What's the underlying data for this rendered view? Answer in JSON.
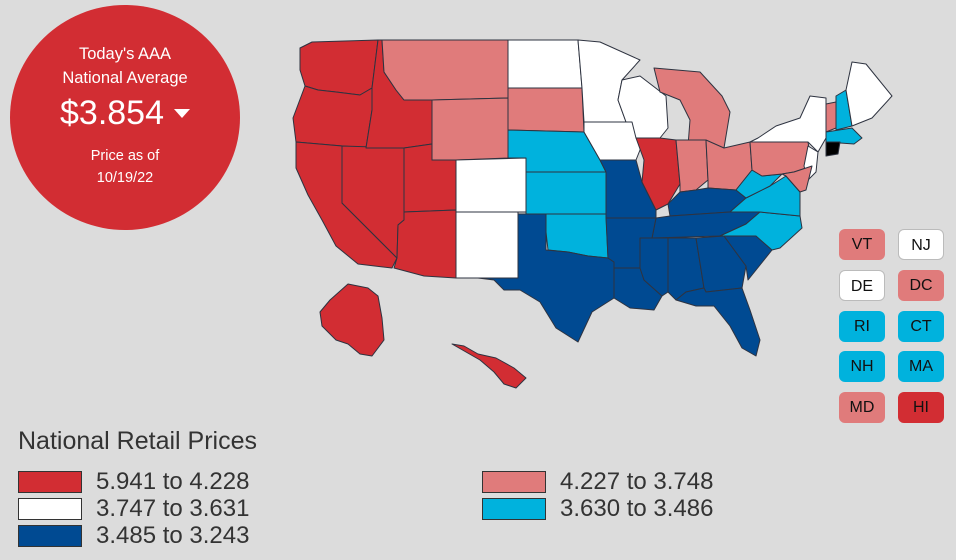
{
  "badge": {
    "line1": "Today's AAA",
    "line2": "National Average",
    "price": "$3.854",
    "trend": "down",
    "asof_label": "Price as of",
    "asof_date": "10/19/22"
  },
  "colors": {
    "tier1": "#d22d33",
    "tier2": "#e07b7b",
    "tier3": "#ffffff",
    "tier4": "#00b2dd",
    "tier5": "#004a92"
  },
  "legend": {
    "title": "National Retail Prices",
    "items": [
      {
        "label": "5.941 to 4.228",
        "tier": "tier1"
      },
      {
        "label": "3.747 to 3.631",
        "tier": "tier3"
      },
      {
        "label": "3.485 to 3.243",
        "tier": "tier5"
      },
      {
        "label": "4.227 to 3.748",
        "tier": "tier2"
      },
      {
        "label": "3.630 to 3.486",
        "tier": "tier4"
      }
    ]
  },
  "small_states": [
    {
      "code": "VT",
      "tier": "tier2"
    },
    {
      "code": "NJ",
      "tier": "tier3"
    },
    {
      "code": "DE",
      "tier": "tier3"
    },
    {
      "code": "DC",
      "tier": "tier2"
    },
    {
      "code": "RI",
      "tier": "tier4"
    },
    {
      "code": "CT",
      "tier": "tier4"
    },
    {
      "code": "NH",
      "tier": "tier4"
    },
    {
      "code": "MA",
      "tier": "tier4"
    },
    {
      "code": "MD",
      "tier": "tier2"
    },
    {
      "code": "HI",
      "tier": "tier1"
    }
  ],
  "map_states": [
    {
      "code": "WA",
      "tier": "tier1"
    },
    {
      "code": "OR",
      "tier": "tier1"
    },
    {
      "code": "CA",
      "tier": "tier1"
    },
    {
      "code": "NV",
      "tier": "tier1"
    },
    {
      "code": "ID",
      "tier": "tier1"
    },
    {
      "code": "UT",
      "tier": "tier1"
    },
    {
      "code": "AZ",
      "tier": "tier1"
    },
    {
      "code": "AK",
      "tier": "tier1"
    },
    {
      "code": "HI",
      "tier": "tier1"
    },
    {
      "code": "IL",
      "tier": "tier1"
    },
    {
      "code": "MT",
      "tier": "tier2"
    },
    {
      "code": "WY",
      "tier": "tier2"
    },
    {
      "code": "SD",
      "tier": "tier2"
    },
    {
      "code": "MI",
      "tier": "tier2"
    },
    {
      "code": "IN",
      "tier": "tier2"
    },
    {
      "code": "OH",
      "tier": "tier2"
    },
    {
      "code": "PA",
      "tier": "tier2"
    },
    {
      "code": "VT",
      "tier": "tier2"
    },
    {
      "code": "MD",
      "tier": "tier2"
    },
    {
      "code": "ND",
      "tier": "tier3"
    },
    {
      "code": "MN",
      "tier": "tier3"
    },
    {
      "code": "WI",
      "tier": "tier3"
    },
    {
      "code": "IA",
      "tier": "tier3"
    },
    {
      "code": "CO",
      "tier": "tier3"
    },
    {
      "code": "NM",
      "tier": "tier3"
    },
    {
      "code": "NY",
      "tier": "tier3"
    },
    {
      "code": "ME",
      "tier": "tier3"
    },
    {
      "code": "NJ",
      "tier": "tier3"
    },
    {
      "code": "NE",
      "tier": "tier4"
    },
    {
      "code": "KS",
      "tier": "tier4"
    },
    {
      "code": "OK",
      "tier": "tier4"
    },
    {
      "code": "VA",
      "tier": "tier4"
    },
    {
      "code": "WV",
      "tier": "tier4"
    },
    {
      "code": "NC",
      "tier": "tier4"
    },
    {
      "code": "NH",
      "tier": "tier4"
    },
    {
      "code": "MA",
      "tier": "tier4"
    },
    {
      "code": "TX",
      "tier": "tier5"
    },
    {
      "code": "MO",
      "tier": "tier5"
    },
    {
      "code": "AR",
      "tier": "tier5"
    },
    {
      "code": "LA",
      "tier": "tier5"
    },
    {
      "code": "MS",
      "tier": "tier5"
    },
    {
      "code": "AL",
      "tier": "tier5"
    },
    {
      "code": "GA",
      "tier": "tier5"
    },
    {
      "code": "FL",
      "tier": "tier5"
    },
    {
      "code": "TN",
      "tier": "tier5"
    },
    {
      "code": "KY",
      "tier": "tier5"
    },
    {
      "code": "SC",
      "tier": "tier5"
    }
  ]
}
